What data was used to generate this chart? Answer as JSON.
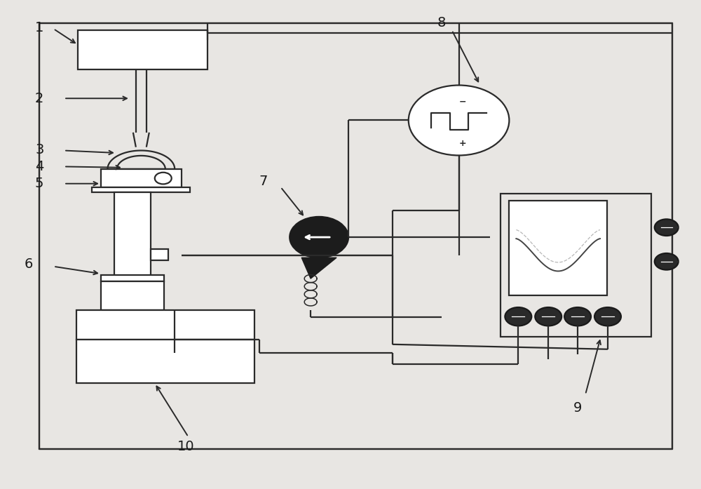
{
  "bg_color": "#e8e6e3",
  "line_color": "#2a2a2a",
  "lw": 1.6,
  "fig_w": 10.0,
  "fig_h": 6.97,
  "dpi": 100
}
